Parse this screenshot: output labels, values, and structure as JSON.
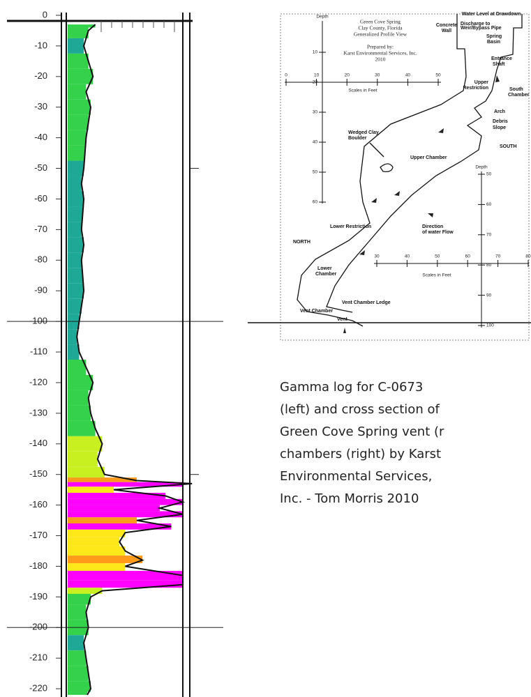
{
  "gamma_log": {
    "depths": [
      -3,
      -5,
      -10,
      -15,
      -20,
      -25,
      -30,
      -35,
      -40,
      -45,
      -50,
      -55,
      -60,
      -65,
      -70,
      -75,
      -80,
      -85,
      -90,
      -95,
      -100,
      -105,
      -110,
      -115,
      -120,
      -125,
      -130,
      -135,
      -140,
      -145,
      -150,
      -152,
      -153,
      -155,
      -157,
      -159,
      -161,
      -163,
      -165,
      -167,
      -169,
      -172,
      -175,
      -178,
      -180,
      -183,
      -186,
      -188,
      -190,
      -195,
      -200,
      -205,
      -210,
      -215,
      -220,
      -222
    ],
    "values": [
      24,
      18,
      14,
      18,
      22,
      16,
      20,
      18,
      16,
      15,
      14,
      12,
      14,
      13,
      12,
      14,
      12,
      13,
      14,
      12,
      10,
      8,
      10,
      16,
      22,
      18,
      20,
      24,
      30,
      26,
      32,
      60,
      108,
      40,
      85,
      100,
      80,
      100,
      60,
      90,
      50,
      45,
      50,
      65,
      50,
      100,
      100,
      30,
      20,
      16,
      18,
      14,
      16,
      18,
      20,
      17
    ],
    "xlim": [
      0,
      100
    ],
    "ylim": [
      5,
      -222.7
    ],
    "yticks": [
      0,
      -10,
      -20,
      -30,
      -40,
      -50,
      -60,
      -70,
      -80,
      -90,
      -100,
      -110,
      -120,
      -130,
      -140,
      -150,
      -160,
      -170,
      -180,
      -190,
      -200,
      -210,
      -220
    ]
  },
  "cross_section": {
    "depth_label": "Depth",
    "title": [
      "Green Cove Spring",
      "Clay County, Florida",
      "Generalized Profile View"
    ],
    "credit": [
      "Prepared by:",
      "Karst Environmental Services, Inc.",
      "2010"
    ],
    "labels": [
      "Water Level at Drawdown",
      "Concrete",
      "Wall",
      "Discharge to",
      "Weir/Bypass Pipe",
      "Spring",
      "Basin",
      "Entrance",
      "Shaft",
      "Upper",
      "Restriction",
      "South",
      "Chamber",
      "Arch",
      "Debris",
      "Slope",
      "SOUTH",
      "Wedged Clay",
      "Boulder",
      "Upper Chamber",
      "Lower Restriction",
      "Direction",
      "of water Flow",
      "NORTH",
      "Lower",
      "Chamber",
      "Vent Chamber Ledge",
      "Vent Chamber",
      "Vent"
    ],
    "scale_label": "Scales in Feet",
    "left_depth_ticks": [
      10,
      20,
      30,
      40,
      50,
      60
    ],
    "right_depth_ticks": [
      50,
      60,
      70,
      80,
      90,
      100
    ],
    "upper_scale_ticks": [
      0,
      10,
      20,
      30,
      40,
      50
    ],
    "lower_scale_ticks": [
      30,
      40,
      50,
      60,
      70,
      80
    ]
  },
  "caption": [
    "Gamma log for C-0673",
    "(left) and cross section of",
    "Green Cove Spring vent (r",
    "chambers (right) by Karst",
    "Environmental Services,",
    "Inc. - Tom Morris 2010"
  ]
}
